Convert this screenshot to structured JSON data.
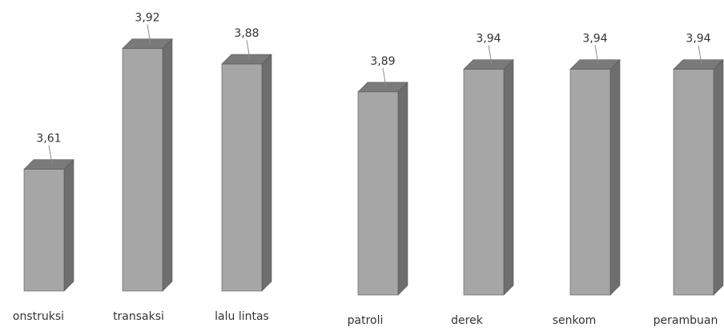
{
  "chart_data": [
    {
      "type": "bar",
      "categories": [
        "onstruksi",
        "transaksi",
        "lalu lintas"
      ],
      "values": [
        3.61,
        3.92,
        3.88
      ],
      "value_labels": [
        "3,61",
        "3,92",
        "3,88"
      ],
      "title": "",
      "xlabel": "",
      "ylabel": "",
      "style": "3d-column",
      "grid": false
    },
    {
      "type": "bar",
      "categories": [
        "patroli",
        "derek",
        "senkom",
        "perambuan"
      ],
      "values": [
        3.89,
        3.94,
        3.94,
        3.94
      ],
      "value_labels": [
        "3,89",
        "3,94",
        "3,94",
        "3,94"
      ],
      "title": "",
      "xlabel": "",
      "ylabel": "",
      "style": "3d-column",
      "grid": false
    }
  ],
  "colors": {
    "bar_front": "#a6a6a6",
    "bar_side": "#6e6e6e",
    "bar_top": "#7a7a7a",
    "bar_edge": "#555555",
    "leader_line": "#8c8c8c",
    "text": "#333333"
  }
}
